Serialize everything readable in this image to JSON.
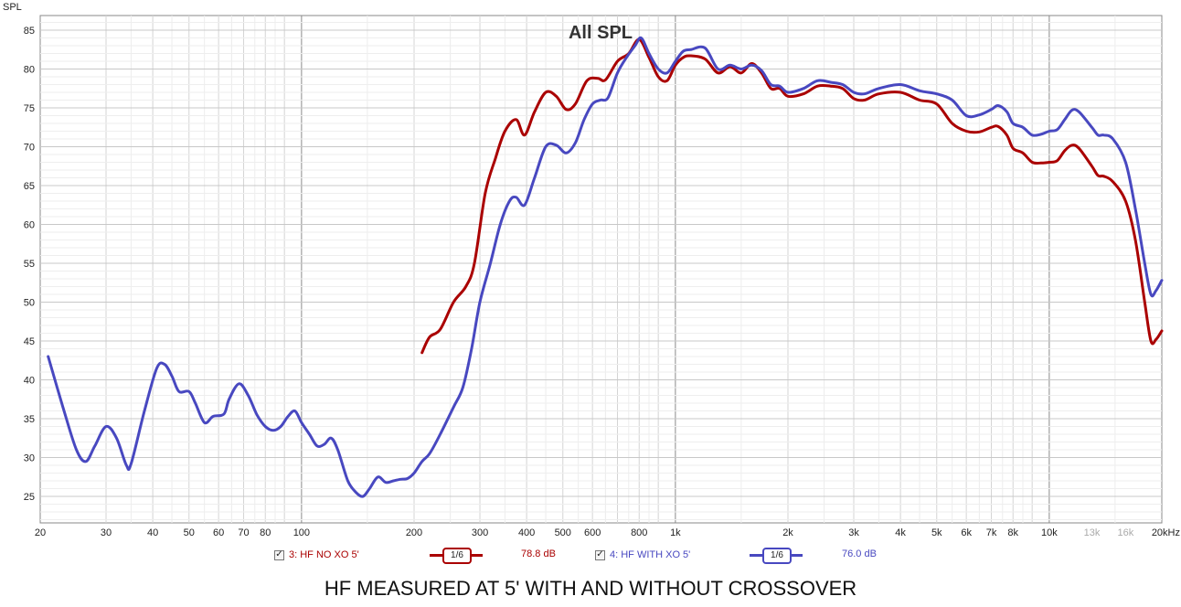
{
  "caption": "HF MEASURED AT 5' WITH AND WITHOUT CROSSOVER",
  "legend": [
    {
      "checked": true,
      "label": "3: HF NO XO 5'",
      "smoothing": "1/6",
      "level": "78.8 dB",
      "color": "#aa0000"
    },
    {
      "checked": true,
      "label": "4: HF WITH XO 5'",
      "smoothing": "1/6",
      "level": "76.0 dB",
      "color": "#4848c0"
    }
  ],
  "chart_data": {
    "type": "line",
    "title": "All SPL",
    "ylabel": "SPL",
    "xscale": "log",
    "xlim": [
      20,
      20000
    ],
    "ylim": [
      22,
      87
    ],
    "grid": true,
    "y_ticks": [
      25,
      30,
      35,
      40,
      45,
      50,
      55,
      60,
      65,
      70,
      75,
      80,
      85
    ],
    "x_ticks": [
      {
        "v": 20,
        "label": "20"
      },
      {
        "v": 30,
        "label": "30"
      },
      {
        "v": 40,
        "label": "40"
      },
      {
        "v": 50,
        "label": "50"
      },
      {
        "v": 60,
        "label": "60"
      },
      {
        "v": 70,
        "label": "70"
      },
      {
        "v": 80,
        "label": "80"
      },
      {
        "v": 100,
        "label": "100"
      },
      {
        "v": 200,
        "label": "200"
      },
      {
        "v": 300,
        "label": "300"
      },
      {
        "v": 400,
        "label": "400"
      },
      {
        "v": 500,
        "label": "500"
      },
      {
        "v": 600,
        "label": "600"
      },
      {
        "v": 800,
        "label": "800"
      },
      {
        "v": 1000,
        "label": "1k"
      },
      {
        "v": 2000,
        "label": "2k"
      },
      {
        "v": 3000,
        "label": "3k"
      },
      {
        "v": 4000,
        "label": "4k"
      },
      {
        "v": 5000,
        "label": "5k"
      },
      {
        "v": 6000,
        "label": "6k"
      },
      {
        "v": 7000,
        "label": "7k"
      },
      {
        "v": 8000,
        "label": "8k"
      },
      {
        "v": 10000,
        "label": "10k"
      },
      {
        "v": 13000,
        "label": "13k",
        "muted": true
      },
      {
        "v": 16000,
        "label": "16k",
        "muted": true
      },
      {
        "v": 20000,
        "label": "20kHz"
      }
    ],
    "series": [
      {
        "name": "3: HF NO XO 5'",
        "color": "#aa0000",
        "points": [
          [
            210,
            43.5
          ],
          [
            220,
            45.5
          ],
          [
            235,
            46.5
          ],
          [
            255,
            50
          ],
          [
            275,
            52
          ],
          [
            290,
            55
          ],
          [
            310,
            64
          ],
          [
            330,
            68.5
          ],
          [
            350,
            72
          ],
          [
            375,
            73.5
          ],
          [
            395,
            71.5
          ],
          [
            420,
            74.5
          ],
          [
            450,
            77
          ],
          [
            480,
            76.5
          ],
          [
            510,
            74.8
          ],
          [
            540,
            75.5
          ],
          [
            580,
            78.5
          ],
          [
            620,
            78.8
          ],
          [
            650,
            78.6
          ],
          [
            700,
            81
          ],
          [
            750,
            82
          ],
          [
            800,
            83.8
          ],
          [
            850,
            81.5
          ],
          [
            900,
            79
          ],
          [
            950,
            78.5
          ],
          [
            1000,
            80.5
          ],
          [
            1050,
            81.5
          ],
          [
            1100,
            81.7
          ],
          [
            1200,
            81.3
          ],
          [
            1300,
            79.5
          ],
          [
            1400,
            80.3
          ],
          [
            1500,
            79.5
          ],
          [
            1600,
            80.7
          ],
          [
            1700,
            79.5
          ],
          [
            1800,
            77.5
          ],
          [
            1900,
            77.5
          ],
          [
            2000,
            76.5
          ],
          [
            2200,
            76.8
          ],
          [
            2400,
            77.8
          ],
          [
            2600,
            77.8
          ],
          [
            2800,
            77.5
          ],
          [
            3000,
            76.2
          ],
          [
            3200,
            76
          ],
          [
            3500,
            76.8
          ],
          [
            4000,
            77
          ],
          [
            4500,
            76
          ],
          [
            5000,
            75.5
          ],
          [
            5500,
            73
          ],
          [
            6000,
            72
          ],
          [
            6500,
            71.9
          ],
          [
            7000,
            72.5
          ],
          [
            7300,
            72.6
          ],
          [
            7700,
            71.5
          ],
          [
            8000,
            69.8
          ],
          [
            8500,
            69.2
          ],
          [
            9000,
            68
          ],
          [
            9500,
            67.9
          ],
          [
            10000,
            68
          ],
          [
            10500,
            68.2
          ],
          [
            11000,
            69.5
          ],
          [
            11500,
            70.2
          ],
          [
            12000,
            69.8
          ],
          [
            13000,
            67.5
          ],
          [
            13500,
            66.3
          ],
          [
            14000,
            66.2
          ],
          [
            14800,
            65.5
          ],
          [
            16000,
            63
          ],
          [
            17000,
            58
          ],
          [
            18000,
            50
          ],
          [
            18700,
            45
          ],
          [
            19300,
            45.2
          ],
          [
            20000,
            46.3
          ]
        ]
      },
      {
        "name": "4: HF WITH XO 5'",
        "color": "#4848c0",
        "points": [
          [
            21,
            43
          ],
          [
            23,
            36.5
          ],
          [
            25,
            31
          ],
          [
            26.5,
            29.5
          ],
          [
            28,
            31.5
          ],
          [
            30,
            34
          ],
          [
            32,
            32.5
          ],
          [
            34,
            29
          ],
          [
            35,
            29.2
          ],
          [
            38,
            36
          ],
          [
            41,
            41.5
          ],
          [
            43,
            42
          ],
          [
            45,
            40.5
          ],
          [
            47,
            38.5
          ],
          [
            50,
            38.5
          ],
          [
            52,
            37
          ],
          [
            55,
            34.5
          ],
          [
            58,
            35.3
          ],
          [
            62,
            35.6
          ],
          [
            64,
            37.5
          ],
          [
            68,
            39.5
          ],
          [
            72,
            38
          ],
          [
            76,
            35.5
          ],
          [
            80,
            34
          ],
          [
            84,
            33.5
          ],
          [
            88,
            34
          ],
          [
            92,
            35.3
          ],
          [
            96,
            36
          ],
          [
            100,
            34.5
          ],
          [
            105,
            33
          ],
          [
            110,
            31.5
          ],
          [
            115,
            31.7
          ],
          [
            120,
            32.5
          ],
          [
            125,
            31
          ],
          [
            133,
            27
          ],
          [
            140,
            25.5
          ],
          [
            146,
            25
          ],
          [
            152,
            26
          ],
          [
            160,
            27.5
          ],
          [
            168,
            26.8
          ],
          [
            176,
            27
          ],
          [
            184,
            27.2
          ],
          [
            192,
            27.3
          ],
          [
            200,
            28
          ],
          [
            210,
            29.5
          ],
          [
            220,
            30.5
          ],
          [
            235,
            33
          ],
          [
            255,
            36.5
          ],
          [
            270,
            39
          ],
          [
            285,
            44
          ],
          [
            300,
            50
          ],
          [
            320,
            55
          ],
          [
            340,
            60
          ],
          [
            360,
            63
          ],
          [
            375,
            63.5
          ],
          [
            395,
            62.5
          ],
          [
            420,
            66
          ],
          [
            450,
            70
          ],
          [
            480,
            70.2
          ],
          [
            510,
            69.2
          ],
          [
            540,
            70.5
          ],
          [
            570,
            73.5
          ],
          [
            600,
            75.5
          ],
          [
            630,
            76
          ],
          [
            660,
            76.3
          ],
          [
            700,
            79.5
          ],
          [
            740,
            81.5
          ],
          [
            780,
            83
          ],
          [
            810,
            84
          ],
          [
            850,
            82
          ],
          [
            900,
            80
          ],
          [
            950,
            79.5
          ],
          [
            1000,
            81
          ],
          [
            1050,
            82.3
          ],
          [
            1100,
            82.5
          ],
          [
            1200,
            82.7
          ],
          [
            1300,
            80
          ],
          [
            1400,
            80.5
          ],
          [
            1500,
            80
          ],
          [
            1600,
            80.5
          ],
          [
            1700,
            79.8
          ],
          [
            1800,
            78
          ],
          [
            1900,
            77.8
          ],
          [
            2000,
            77
          ],
          [
            2200,
            77.5
          ],
          [
            2400,
            78.5
          ],
          [
            2600,
            78.3
          ],
          [
            2800,
            78
          ],
          [
            3000,
            77
          ],
          [
            3200,
            76.8
          ],
          [
            3500,
            77.5
          ],
          [
            4000,
            78
          ],
          [
            4500,
            77.2
          ],
          [
            5000,
            76.8
          ],
          [
            5500,
            76
          ],
          [
            6000,
            74
          ],
          [
            6500,
            74.1
          ],
          [
            7000,
            74.8
          ],
          [
            7300,
            75.3
          ],
          [
            7700,
            74.5
          ],
          [
            8000,
            73
          ],
          [
            8500,
            72.5
          ],
          [
            9000,
            71.5
          ],
          [
            9500,
            71.6
          ],
          [
            10000,
            72
          ],
          [
            10500,
            72.2
          ],
          [
            11000,
            73.5
          ],
          [
            11500,
            74.7
          ],
          [
            12000,
            74.5
          ],
          [
            13000,
            72.5
          ],
          [
            13500,
            71.5
          ],
          [
            14000,
            71.5
          ],
          [
            14800,
            71
          ],
          [
            16000,
            68
          ],
          [
            17000,
            62
          ],
          [
            18000,
            55
          ],
          [
            18700,
            51
          ],
          [
            19300,
            51.5
          ],
          [
            20000,
            52.8
          ]
        ]
      }
    ]
  }
}
